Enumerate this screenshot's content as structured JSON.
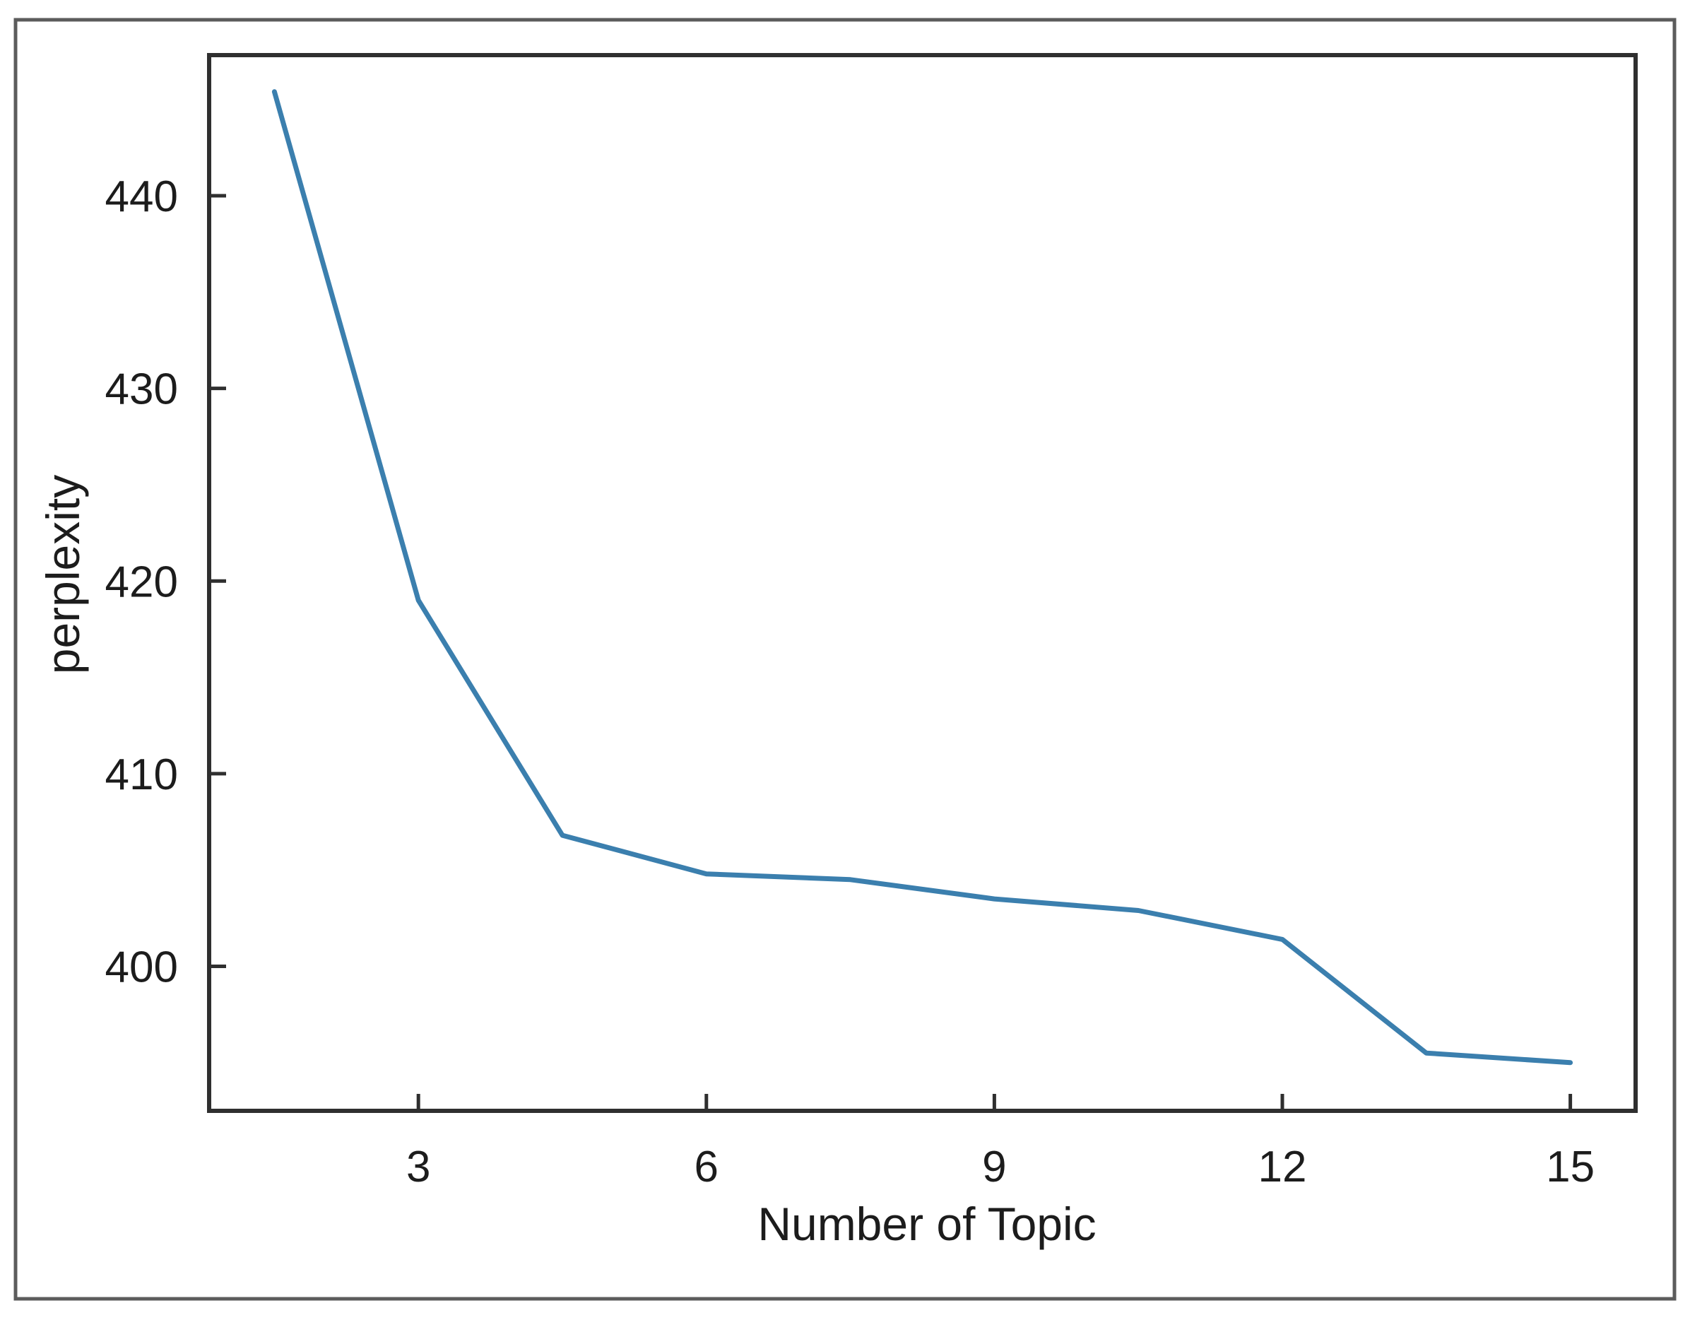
{
  "figure": {
    "outer_border_color": "#5c5c5c",
    "plot_border_color": "#2f2f2f",
    "background_color": "#ffffff",
    "text_color": "#1c1c1c"
  },
  "chart_data": {
    "type": "line",
    "title": "",
    "xlabel": "Number of Topic",
    "ylabel": "perplexity",
    "x": [
      1.5,
      3,
      4.5,
      6,
      7.5,
      9,
      10.5,
      12,
      13.5,
      15
    ],
    "y": [
      445.4,
      419.0,
      406.8,
      404.8,
      404.5,
      403.5,
      402.9,
      401.4,
      395.5,
      395.0
    ],
    "series_name": "perplexity",
    "x_ticks": [
      3,
      6,
      9,
      12,
      15
    ],
    "y_ticks": [
      400,
      410,
      420,
      430,
      440
    ],
    "xlim": [
      0.82,
      15.68
    ],
    "ylim": [
      392.5,
      447.3
    ],
    "line_color": "#3b7fae",
    "line_width": 7,
    "grid": "off",
    "legend": "none",
    "tick_direction": "in"
  }
}
